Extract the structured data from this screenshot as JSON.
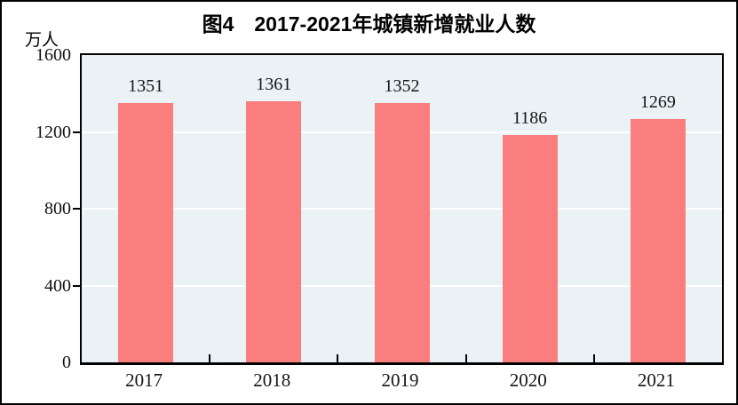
{
  "figure": {
    "title": "图4　2017-2021年城镇新增就业人数",
    "y_unit_label": "万人"
  },
  "chart_data": {
    "type": "bar",
    "title": "图4　2017-2021年城镇新增就业人数",
    "ylabel": "万人",
    "xlabel": "",
    "categories": [
      "2017",
      "2018",
      "2019",
      "2020",
      "2021"
    ],
    "values": [
      1351,
      1361,
      1352,
      1186,
      1269
    ],
    "ylim": [
      0,
      1600
    ],
    "yticks": [
      0,
      400,
      800,
      1200,
      1600
    ],
    "gridlines": [
      400,
      800,
      1200
    ],
    "grid": true,
    "legend": "none",
    "data_labels": true,
    "colors": {
      "bar": "#FA7E7E",
      "plot_background": "#EAF2F6",
      "gridline": "#FFFFFF",
      "axis": "#000000",
      "text": "#151515"
    }
  }
}
